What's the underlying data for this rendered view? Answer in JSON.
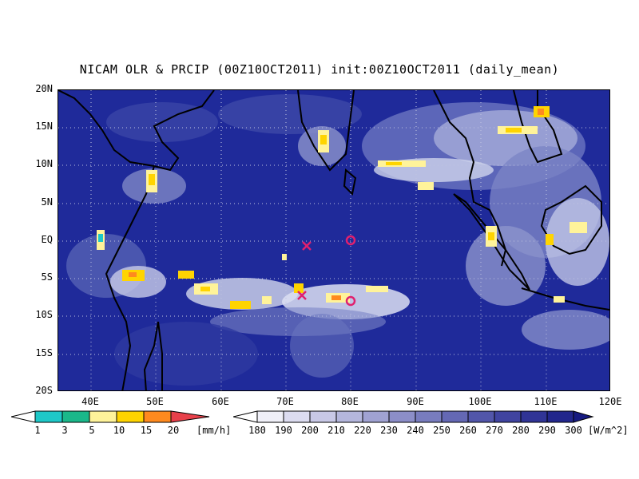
{
  "title": "NICAM OLR & PRCIP (00Z10OCT2011) init:00Z10OCT2011 (daily_mean)",
  "map": {
    "lon_range": [
      35,
      120
    ],
    "lat_range": [
      -20,
      20
    ],
    "lat_labels": [
      "20N",
      "15N",
      "10N",
      "5N",
      "EQ",
      "5S",
      "10S",
      "15S",
      "20S"
    ],
    "lon_labels": [
      "40E",
      "50E",
      "60E",
      "70E",
      "80E",
      "90E",
      "100E",
      "110E",
      "120E"
    ],
    "colors": {
      "ocean_bg": "#1f2a9a",
      "olr_mid": "#5d6ab8",
      "olr_light": "#c8cce8",
      "coast": "#000000",
      "grid": "#c0c4e0",
      "marker": "#e0206e"
    },
    "markers": [
      {
        "type": "x-mark",
        "lon": 73,
        "lat": -0.8
      },
      {
        "type": "circle",
        "lon": 80,
        "lat": 0
      },
      {
        "type": "x-mark",
        "lon": 72.5,
        "lat": -7.5
      },
      {
        "type": "circle",
        "lon": 80,
        "lat": -8
      }
    ]
  },
  "precip_colorbar": {
    "labels": [
      "1",
      "3",
      "5",
      "10",
      "15",
      "20"
    ],
    "colors": [
      "#1ec8c8",
      "#1ab88a",
      "#fff39a",
      "#ffd400",
      "#ff8a1e",
      "#e8404a"
    ],
    "unit": "[mm/h]"
  },
  "olr_colorbar": {
    "labels": [
      "180",
      "190",
      "200",
      "210",
      "220",
      "230",
      "240",
      "250",
      "260",
      "270",
      "280",
      "290",
      "300"
    ],
    "colors": [
      "#f0f0f8",
      "#dcdcf0",
      "#c8c8e6",
      "#b4b6dc",
      "#a0a2d2",
      "#8c8ec8",
      "#787cbe",
      "#6468b4",
      "#5256aa",
      "#4044a0",
      "#303496",
      "#22268c",
      "#161a80",
      "#10147a"
    ],
    "unit": "[W/m^2]"
  }
}
